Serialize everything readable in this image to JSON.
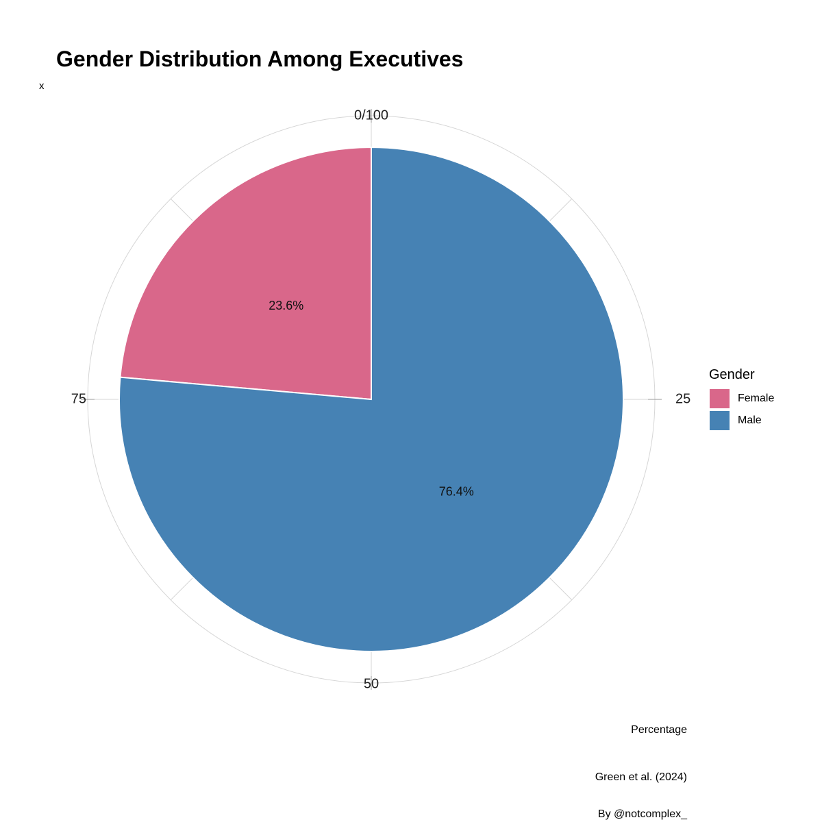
{
  "title": "Gender Distribution Among Executives",
  "y_axis_label": "x",
  "x_axis_label": "Percentage",
  "caption_lines": [
    "Green et al. (2024)",
    "By @notcomplex_"
  ],
  "legend": {
    "title": "Gender",
    "items": [
      {
        "label": "Female",
        "color": "#D9678A"
      },
      {
        "label": "Male",
        "color": "#4682B4"
      }
    ]
  },
  "chart_data": {
    "type": "pie",
    "title": "Gender Distribution Among Executives",
    "xlabel": "Percentage",
    "ylabel": "x",
    "categories": [
      "Female",
      "Male"
    ],
    "values": [
      23.6,
      76.4
    ],
    "data_labels": [
      "23.6%",
      "76.4%"
    ],
    "colors": [
      "#D9678A",
      "#4682B4"
    ],
    "angular_axis": {
      "range": [
        0,
        100
      ],
      "tick_values": [
        0,
        25,
        50,
        75
      ],
      "tick_labels": [
        "0/100",
        "25",
        "50",
        "75"
      ]
    },
    "grid": true,
    "legend_position": "right",
    "caption": "Green et al. (2024)\nBy @notcomplex_"
  }
}
